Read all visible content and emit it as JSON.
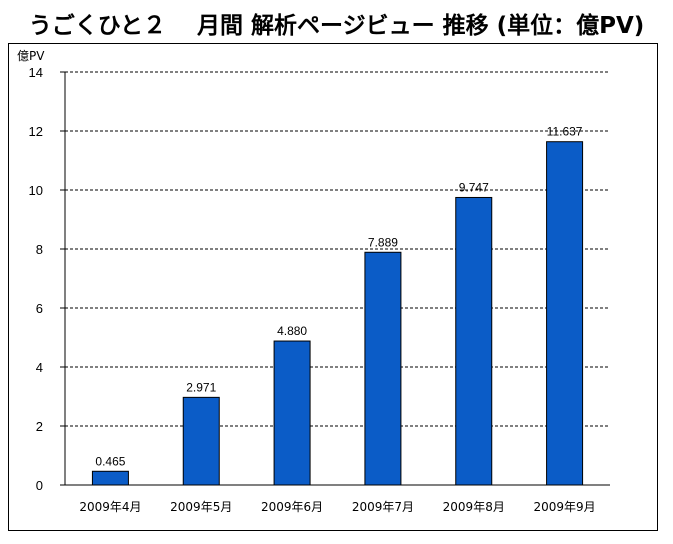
{
  "title": "うごくひと２　 月間 解析ページビュー 推移 (単位：億PV)",
  "chart_data": {
    "type": "bar",
    "title": "うごくひと２　 月間 解析ページビュー 推移 (単位：億PV)",
    "y_unit_label": "億PV",
    "categories": [
      "2009年4月",
      "2009年5月",
      "2009年6月",
      "2009年7月",
      "2009年8月",
      "2009年9月"
    ],
    "values": [
      0.465,
      2.971,
      4.88,
      7.889,
      9.747,
      11.637
    ],
    "data_labels": [
      "0.465",
      "2.971",
      "4.880",
      "7.889",
      "9.747",
      "11.637"
    ],
    "ylim": [
      0,
      14
    ],
    "yticks": [
      0,
      2,
      4,
      6,
      8,
      10,
      12,
      14
    ],
    "grid": true,
    "bar_color": "#0b5cc7",
    "legend": "none"
  }
}
